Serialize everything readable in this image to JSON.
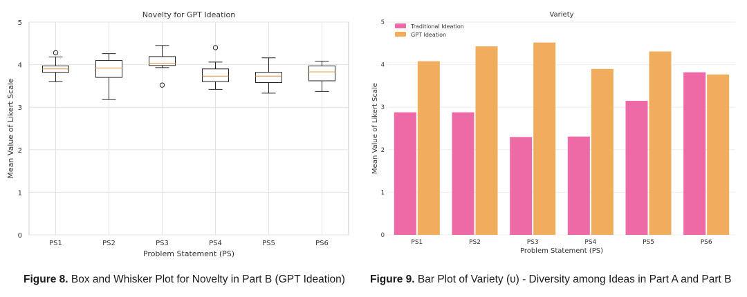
{
  "chart_data": [
    {
      "type": "box",
      "title": "Novelty for GPT Ideation",
      "xlabel": "Problem Statement (PS)",
      "ylabel": "Mean Value of Likert Scale",
      "ylim": [
        0,
        5
      ],
      "yticks": [
        "0",
        "1",
        "2",
        "3",
        "4",
        "5"
      ],
      "grid": true,
      "categories": [
        "PS1",
        "PS2",
        "PS3",
        "PS4",
        "PS5",
        "PS6"
      ],
      "boxes": [
        {
          "whisker_low": 3.6,
          "q1": 3.82,
          "median": 3.9,
          "q3": 3.97,
          "whisker_high": 4.18,
          "outliers": [
            4.28
          ]
        },
        {
          "whisker_low": 3.18,
          "q1": 3.7,
          "median": 3.92,
          "q3": 4.1,
          "whisker_high": 4.26,
          "outliers": []
        },
        {
          "whisker_low": 3.93,
          "q1": 3.98,
          "median": 4.03,
          "q3": 4.19,
          "whisker_high": 4.45,
          "outliers": [
            3.52
          ]
        },
        {
          "whisker_low": 3.42,
          "q1": 3.6,
          "median": 3.73,
          "q3": 3.9,
          "whisker_high": 4.06,
          "outliers": [
            4.4
          ]
        },
        {
          "whisker_low": 3.33,
          "q1": 3.58,
          "median": 3.73,
          "q3": 3.82,
          "whisker_high": 4.16,
          "outliers": []
        },
        {
          "whisker_low": 3.37,
          "q1": 3.62,
          "median": 3.83,
          "q3": 3.97,
          "whisker_high": 4.08,
          "outliers": []
        }
      ]
    },
    {
      "type": "bar",
      "title": "Variety",
      "xlabel": "Problem Statement (PS)",
      "ylabel": "Mean Value of Likert Scale",
      "ylim": [
        0,
        5
      ],
      "yticks": [
        "0",
        "1",
        "2",
        "3",
        "4",
        "5"
      ],
      "grid": true,
      "legend_position": "top-left",
      "categories": [
        "PS1",
        "PS2",
        "PS3",
        "PS4",
        "PS5",
        "PS6"
      ],
      "series": [
        {
          "name": "Traditional Ideation",
          "color": "#EE6AA7",
          "values": [
            2.88,
            2.88,
            2.3,
            2.31,
            3.15,
            3.82
          ]
        },
        {
          "name": "GPT Ideation",
          "color": "#F0AD5E",
          "values": [
            4.08,
            4.43,
            4.52,
            3.9,
            4.31,
            3.77
          ]
        }
      ]
    }
  ],
  "captions": {
    "left_label": "Figure 8.",
    "left_text": " Box and Whisker Plot for Novelty in Part B (GPT Ideation)",
    "right_label": "Figure 9.",
    "right_text": " Bar Plot of Variety (υ) - Diversity among Ideas in Part A and Part B"
  }
}
